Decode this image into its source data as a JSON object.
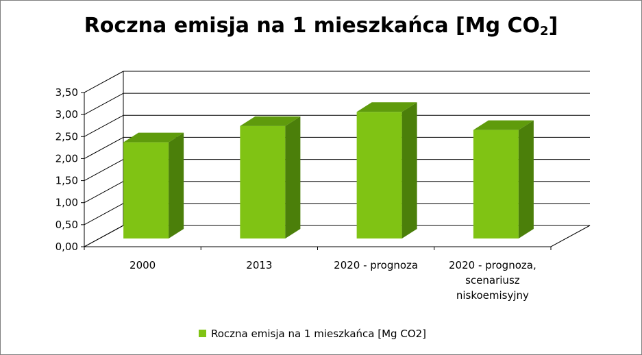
{
  "chart_data": {
    "type": "bar",
    "title_main": "Roczna emisja na 1 mieszkańca [Mg CO",
    "title_sub": "2",
    "title_end": "]",
    "categories": [
      [
        "2000"
      ],
      [
        "2013"
      ],
      [
        "2020 - prognoza"
      ],
      [
        "2020 - prognoza,",
        "scenariusz",
        "niskoemisyjny"
      ]
    ],
    "series": [
      {
        "name": "Roczna emisja na 1 mieszkańca [Mg CO2]",
        "values": [
          2.37,
          2.74,
          3.06,
          2.65
        ]
      }
    ],
    "ylim": [
      0,
      3.5
    ],
    "ticks": [
      "0,00",
      "0,50",
      "1,00",
      "1,50",
      "2,00",
      "2,50",
      "3,00",
      "3,50"
    ],
    "grid": true,
    "legend_position": "bottom",
    "colors": {
      "bar_front": "#80c314",
      "bar_side": "#4b7f0a",
      "bar_top": "#5f9b0c",
      "grid": "#000000"
    }
  }
}
